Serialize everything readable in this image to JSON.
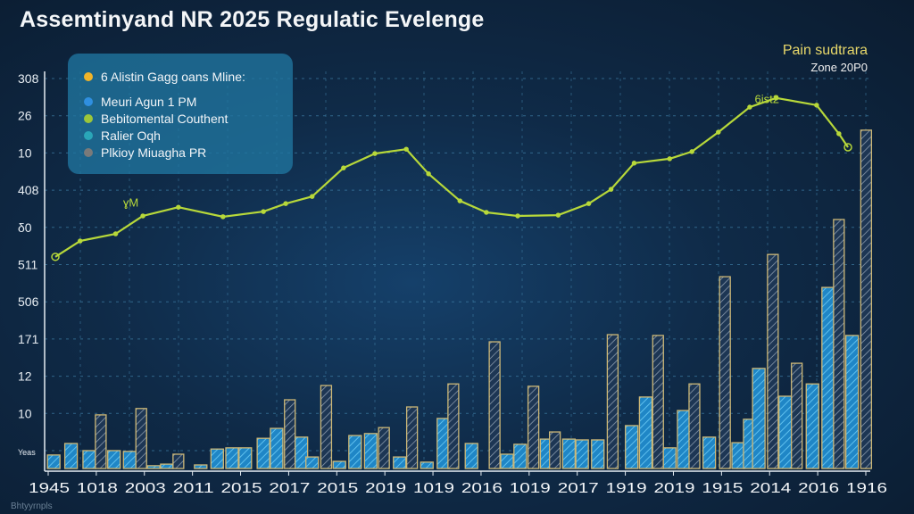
{
  "title": "Assemtinyand NR 2025 Regulatic Evelenge",
  "corner_label": {
    "line1": "Pain sudtrara",
    "line2": "Zone 20P0"
  },
  "footer": "Bhtyyrnpls",
  "legend": [
    {
      "label": "6 Alistin Gagg oans Mline:",
      "color": "#f0b429"
    },
    {
      "label": "Meuri Agun 1 PM",
      "color": "#2f8fe0"
    },
    {
      "label": "Bebitomental Couthent",
      "color": "#9cc63a"
    },
    {
      "label": "Ralier Oqh",
      "color": "#2aa6b8"
    },
    {
      "label": "Plkioy Miuagha PR",
      "color": "#7a7a7a"
    }
  ],
  "chart_data": {
    "type": "bar",
    "title": "Assemtinyand NR 2025 Regulatic Evelenge",
    "xlabel": "",
    "ylabel": "",
    "xlim": [
      0,
      100
    ],
    "ylim": [
      0,
      100
    ],
    "grid": true,
    "legend_position": "top-left",
    "y_tick_labels": [
      "308",
      "26",
      "10",
      "408",
      "δ0",
      "511",
      "506",
      "171",
      "12",
      "10",
      "Yeas"
    ],
    "x_tick_labels": [
      "1945",
      "1018",
      "2003",
      "2011",
      "2015",
      "2017",
      "2015",
      "2019",
      "1019",
      "2016",
      "1019",
      "2017",
      "1919",
      "2019",
      "1915",
      "2014",
      "2016",
      "1916"
    ],
    "annotations": [
      {
        "text": "ɣM",
        "x": 9.5,
        "y": 66
      },
      {
        "text": "6ist2",
        "x": 86,
        "y": 92
      }
    ],
    "colors": {
      "solid": "#1f86c6",
      "hatched": "#1d3654",
      "border": "#cdb877",
      "line": "#b7d83a"
    },
    "bars": [
      [
        1.1,
        3.4,
        "solid"
      ],
      [
        3.2,
        6.3,
        "solid"
      ],
      [
        5.4,
        4.5,
        "solid"
      ],
      [
        6.8,
        13.5,
        "hatched"
      ],
      [
        8.4,
        4.5,
        "solid"
      ],
      [
        10.3,
        4.3,
        "solid"
      ],
      [
        11.7,
        15.1,
        "hatched"
      ],
      [
        13.2,
        0.7,
        "solid"
      ],
      [
        14.8,
        1.1,
        "solid"
      ],
      [
        16.2,
        3.6,
        "hatched"
      ],
      [
        18.9,
        0.9,
        "solid"
      ],
      [
        20.9,
        4.9,
        "solid"
      ],
      [
        22.7,
        5.2,
        "solid"
      ],
      [
        24.3,
        5.2,
        "solid"
      ],
      [
        26.5,
        7.6,
        "solid"
      ],
      [
        28.1,
        10.1,
        "solid"
      ],
      [
        29.7,
        17.3,
        "hatched"
      ],
      [
        31.1,
        7.9,
        "solid"
      ],
      [
        32.4,
        2.9,
        "solid"
      ],
      [
        34.1,
        20.9,
        "hatched"
      ],
      [
        35.7,
        1.8,
        "solid"
      ],
      [
        37.6,
        8.3,
        "solid"
      ],
      [
        39.5,
        8.8,
        "solid"
      ],
      [
        41.1,
        10.3,
        "hatched"
      ],
      [
        43.0,
        2.9,
        "solid"
      ],
      [
        44.5,
        15.5,
        "hatched"
      ],
      [
        46.3,
        1.6,
        "solid"
      ],
      [
        48.3,
        12.6,
        "solid"
      ],
      [
        49.5,
        21.3,
        "hatched"
      ],
      [
        51.7,
        6.3,
        "solid"
      ],
      [
        54.5,
        31.9,
        "hatched"
      ],
      [
        56.0,
        3.6,
        "solid"
      ],
      [
        57.6,
        6.1,
        "solid"
      ],
      [
        59.2,
        20.7,
        "hatched"
      ],
      [
        60.8,
        7.4,
        "solid"
      ],
      [
        61.8,
        9.2,
        "hatched"
      ],
      [
        63.5,
        7.4,
        "solid"
      ],
      [
        65.1,
        7.2,
        "solid"
      ],
      [
        67.0,
        7.2,
        "solid"
      ],
      [
        68.8,
        33.7,
        "hatched"
      ],
      [
        71.1,
        10.8,
        "solid"
      ],
      [
        72.8,
        18.0,
        "solid"
      ],
      [
        74.3,
        33.5,
        "hatched"
      ],
      [
        75.7,
        5.2,
        "solid"
      ],
      [
        77.4,
        14.6,
        "solid"
      ],
      [
        78.7,
        21.3,
        "hatched"
      ],
      [
        80.5,
        7.9,
        "solid"
      ],
      [
        82.4,
        48.3,
        "hatched"
      ],
      [
        84.0,
        6.5,
        "solid"
      ],
      [
        85.4,
        12.4,
        "solid"
      ],
      [
        86.5,
        25.2,
        "solid"
      ],
      [
        88.2,
        53.9,
        "hatched"
      ],
      [
        89.7,
        18.2,
        "solid"
      ],
      [
        91.1,
        26.5,
        "hatched"
      ],
      [
        93.0,
        21.3,
        "solid"
      ],
      [
        94.9,
        45.6,
        "solid"
      ],
      [
        96.2,
        62.7,
        "hatched"
      ],
      [
        97.8,
        33.5,
        "solid"
      ],
      [
        99.5,
        85.2,
        "hatched"
      ]
    ],
    "line": [
      [
        1.3,
        53.3
      ],
      [
        4.3,
        57.3
      ],
      [
        8.6,
        59.1
      ],
      [
        11.9,
        63.6
      ],
      [
        16.2,
        65.8
      ],
      [
        21.6,
        63.4
      ],
      [
        26.5,
        64.7
      ],
      [
        29.2,
        66.7
      ],
      [
        32.4,
        68.5
      ],
      [
        36.2,
        75.7
      ],
      [
        40.0,
        79.3
      ],
      [
        43.8,
        80.4
      ],
      [
        46.5,
        74.2
      ],
      [
        50.3,
        67.4
      ],
      [
        53.5,
        64.5
      ],
      [
        57.3,
        63.6
      ],
      [
        62.2,
        63.8
      ],
      [
        65.9,
        66.7
      ],
      [
        68.6,
        70.3
      ],
      [
        71.4,
        76.9
      ],
      [
        75.7,
        78.0
      ],
      [
        78.4,
        79.8
      ],
      [
        81.6,
        84.7
      ],
      [
        85.4,
        91.0
      ],
      [
        88.6,
        93.3
      ],
      [
        93.5,
        91.5
      ],
      [
        96.2,
        84.3
      ],
      [
        97.3,
        80.9
      ]
    ]
  }
}
